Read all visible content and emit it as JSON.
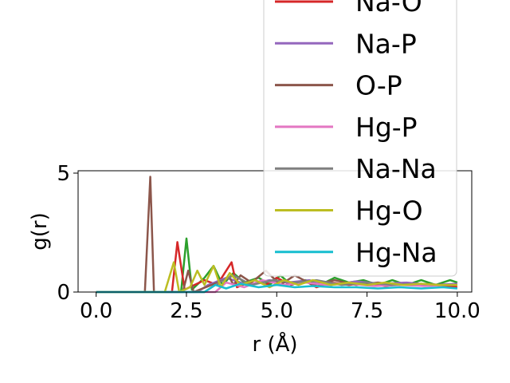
{
  "chart_data": {
    "type": "line",
    "title": "",
    "xlabel": "r (Å)",
    "ylabel": "g(r)",
    "xlim": [
      -0.5,
      10.4
    ],
    "ylim": [
      0,
      5.1
    ],
    "xticks": [
      0.0,
      2.5,
      5.0,
      7.5,
      10.0
    ],
    "xtick_labels": [
      "0.0",
      "2.5",
      "5.0",
      "7.5",
      "10.0"
    ],
    "yticks": [
      0,
      5
    ],
    "ytick_labels": [
      "0",
      "5"
    ],
    "grid": false,
    "legend_placement": "upper-right (overflowing top)",
    "series": [
      {
        "name": "Na-O",
        "color": "#d62728",
        "x": [
          0,
          1.5,
          2.1,
          2.25,
          2.45,
          3.0,
          3.35,
          3.75,
          3.9,
          4.4,
          4.7,
          5.0,
          5.4,
          5.75,
          6.1,
          6.5,
          7.0,
          7.5,
          8.0,
          8.5,
          9.0,
          9.5,
          10.0
        ],
        "y": [
          0,
          0,
          0,
          2.1,
          0.1,
          0.5,
          0.3,
          1.25,
          0.2,
          0.5,
          0.3,
          0.6,
          0.3,
          0.5,
          0.2,
          0.4,
          0.3,
          0.4,
          0.25,
          0.35,
          0.3,
          0.3,
          0.2
        ]
      },
      {
        "name": "Na-P",
        "color": "#9467bd",
        "x": [
          0,
          2.8,
          3.1,
          3.6,
          4.2,
          4.8,
          5.3,
          5.9,
          6.5,
          7.2,
          7.9,
          8.6,
          9.3,
          10.0
        ],
        "y": [
          0,
          0,
          0.3,
          0.6,
          0.3,
          0.5,
          0.4,
          0.5,
          0.3,
          0.45,
          0.35,
          0.4,
          0.3,
          0.35
        ]
      },
      {
        "name": "O-P",
        "color": "#8c564b",
        "x": [
          0,
          1.35,
          1.5,
          1.6,
          2.4,
          2.55,
          2.7,
          3.7,
          3.8,
          4.0,
          4.3,
          4.7,
          5.1,
          5.5,
          6.0,
          6.6,
          7.2,
          7.8,
          8.4,
          9.0,
          9.6,
          10.0
        ],
        "y": [
          0,
          0,
          4.85,
          0,
          0,
          0.9,
          0,
          0.6,
          0.3,
          0.7,
          0.4,
          0.9,
          0.3,
          0.7,
          0.3,
          0.5,
          0.3,
          0.4,
          0.3,
          0.35,
          0.3,
          0.3
        ]
      },
      {
        "name": "Hg-P",
        "color": "#e377c2",
        "x": [
          0,
          3.3,
          3.6,
          4.1,
          4.6,
          5.2,
          5.8,
          6.4,
          7.0,
          7.7,
          8.4,
          9.1,
          9.8
        ],
        "y": [
          0,
          0,
          0.4,
          0.2,
          0.5,
          0.3,
          0.4,
          0.3,
          0.35,
          0.25,
          0.3,
          0.25,
          0.3
        ]
      },
      {
        "name": "Na-Na",
        "color": "#7f7f7f",
        "x": [
          0,
          3.0,
          3.4,
          3.8,
          4.3,
          4.9,
          5.5,
          6.1,
          6.8,
          7.5,
          8.2,
          8.9,
          9.6,
          10.0
        ],
        "y": [
          0,
          0,
          0.4,
          0.7,
          0.3,
          0.5,
          0.4,
          0.5,
          0.3,
          0.4,
          0.3,
          0.35,
          0.3,
          0.3
        ]
      },
      {
        "name": "Hg-O",
        "color": "#bcbd22",
        "x": [
          0,
          1.9,
          2.15,
          2.3,
          2.6,
          2.8,
          3.0,
          3.25,
          3.45,
          3.7,
          4.0,
          4.4,
          4.8,
          5.2,
          5.6,
          6.0,
          6.5,
          7.0,
          7.5,
          8.0,
          8.5,
          9.0,
          9.5,
          10.0
        ],
        "y": [
          0,
          0,
          1.25,
          0,
          0.2,
          0.9,
          0.3,
          1.1,
          0.2,
          0.8,
          0.3,
          0.5,
          0.2,
          0.5,
          0.3,
          0.5,
          0.3,
          0.4,
          0.3,
          0.4,
          0.3,
          0.35,
          0.3,
          0.3
        ]
      },
      {
        "name": "Hg-Na",
        "color": "#17becf",
        "x": [
          0,
          3.0,
          3.3,
          3.6,
          4.0,
          4.5,
          5.0,
          5.5,
          6.0,
          6.6,
          7.2,
          7.8,
          8.4,
          9.0,
          9.6,
          10.0
        ],
        "y": [
          0,
          0,
          0.3,
          0.15,
          0.35,
          0.2,
          0.3,
          0.2,
          0.25,
          0.2,
          0.2,
          0.15,
          0.2,
          0.15,
          0.2,
          0.15
        ]
      }
    ],
    "extra_unlabeled_series": [
      {
        "color": "#2ca02c",
        "x": [
          0,
          2.35,
          2.5,
          2.65,
          3.0,
          3.25,
          3.5,
          3.8,
          4.1,
          4.5,
          4.8,
          5.1,
          5.4,
          5.8,
          6.2,
          6.6,
          7.0,
          7.4,
          7.8,
          8.2,
          8.6,
          9.0,
          9.4,
          9.8,
          10.0
        ],
        "y": [
          0,
          0,
          2.25,
          0.1,
          0.6,
          1.1,
          0.3,
          0.8,
          0.4,
          0.6,
          0.3,
          0.7,
          0.3,
          0.5,
          0.3,
          0.6,
          0.4,
          0.5,
          0.3,
          0.5,
          0.3,
          0.5,
          0.3,
          0.5,
          0.4
        ]
      }
    ],
    "legend_visible_entries": [
      "Na-O",
      "Na-P",
      "O-P",
      "Hg-P",
      "Na-Na",
      "Hg-O",
      "Hg-Na"
    ]
  }
}
